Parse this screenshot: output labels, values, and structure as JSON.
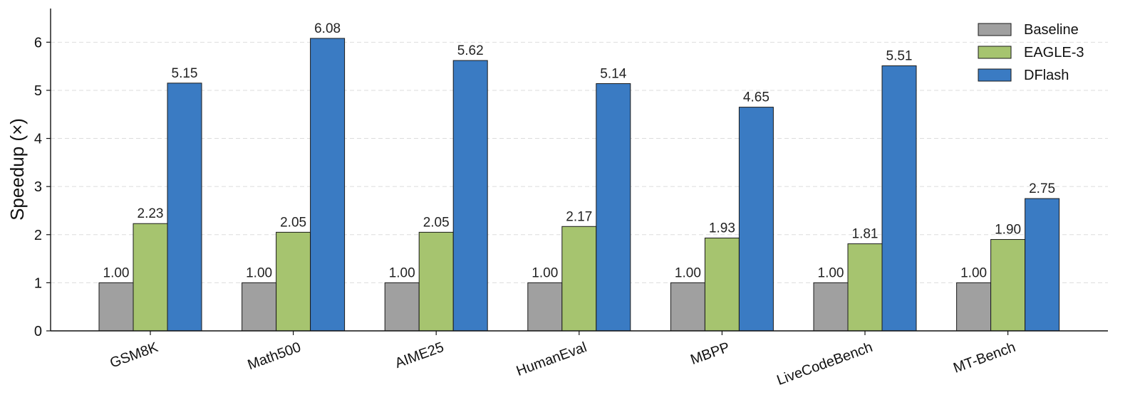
{
  "chart_data": {
    "type": "bar",
    "title": "",
    "xlabel": "",
    "ylabel": "Speedup (×)",
    "ylim": [
      0,
      6.7
    ],
    "yticks": [
      0,
      1,
      2,
      3,
      4,
      5,
      6
    ],
    "grid": "horizontal dashed",
    "legend_position": "top-right",
    "categories": [
      "GSM8K",
      "Math500",
      "AIME25",
      "HumanEval",
      "MBPP",
      "LiveCodeBench",
      "MT-Bench"
    ],
    "series": [
      {
        "name": "Baseline",
        "color": "#a0a0a0",
        "values": [
          1.0,
          1.0,
          1.0,
          1.0,
          1.0,
          1.0,
          1.0
        ],
        "labels": [
          "1.00",
          "1.00",
          "1.00",
          "1.00",
          "1.00",
          "1.00",
          "1.00"
        ]
      },
      {
        "name": "EAGLE-3",
        "color": "#a6c46f",
        "values": [
          2.23,
          2.05,
          2.05,
          2.17,
          1.93,
          1.81,
          1.9
        ],
        "labels": [
          "2.23",
          "2.05",
          "2.05",
          "2.17",
          "1.93",
          "1.81",
          "1.90"
        ]
      },
      {
        "name": "DFlash",
        "color": "#3a7bc3",
        "values": [
          5.15,
          6.08,
          5.62,
          5.14,
          4.65,
          5.51,
          2.75
        ],
        "labels": [
          "5.15",
          "6.08",
          "5.62",
          "5.14",
          "4.65",
          "5.51",
          "2.75"
        ]
      }
    ]
  }
}
